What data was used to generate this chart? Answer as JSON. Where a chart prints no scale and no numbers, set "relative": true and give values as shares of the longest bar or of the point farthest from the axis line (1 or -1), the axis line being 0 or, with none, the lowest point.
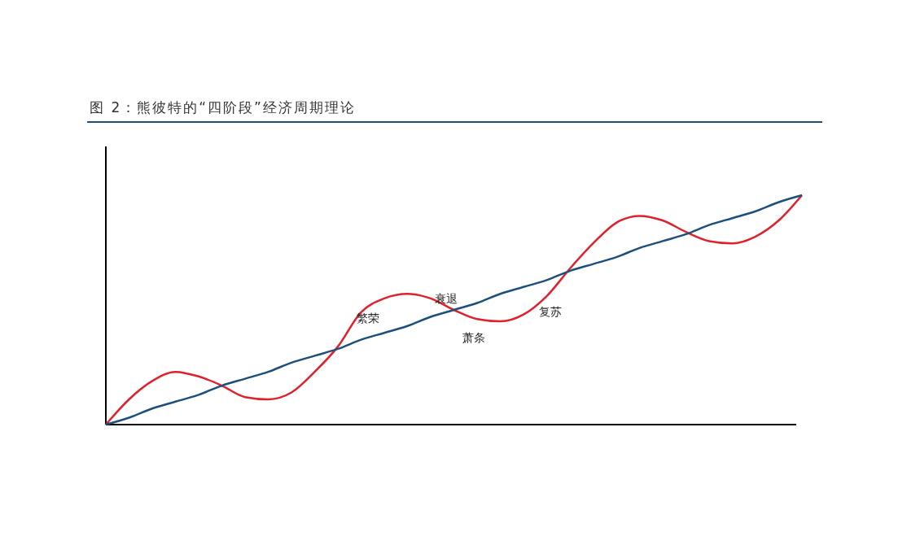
{
  "chart_data": {
    "type": "line",
    "title": "图 2：熊彼特的“四阶段”经济周期理论",
    "relative": true,
    "marker": "none",
    "line_style": "solid",
    "categories": [
      null,
      null,
      null,
      null,
      null,
      null,
      null,
      null,
      null,
      null,
      null,
      null,
      null,
      null,
      null,
      null,
      null,
      null,
      null,
      null,
      null,
      null,
      null,
      null,
      null,
      null,
      null,
      null,
      null,
      null,
      null
    ],
    "series": [
      {
        "color": "#e0202a",
        "values": [
          0,
          0.11,
          0.19,
          0.23,
          0.21,
          0.17,
          0.12,
          0.11,
          0.14,
          0.23,
          0.34,
          0.49,
          0.55,
          0.57,
          0.55,
          0.5,
          0.46,
          0.45,
          0.48,
          0.56,
          0.68,
          0.79,
          0.88,
          0.91,
          0.89,
          0.84,
          0.8,
          0.79,
          0.82,
          0.89,
          1
        ]
      },
      {
        "color": "#1c4f7c",
        "values": [
          0,
          0.03,
          0.07,
          0.1,
          0.13,
          0.17,
          0.2,
          0.23,
          0.27,
          0.3,
          0.33,
          0.37,
          0.4,
          0.43,
          0.47,
          0.5,
          0.53,
          0.57,
          0.6,
          0.63,
          0.67,
          0.7,
          0.73,
          0.77,
          0.8,
          0.83,
          0.87,
          0.9,
          0.93,
          0.97,
          1
        ]
      }
    ],
    "annotations": [
      "繁荣",
      "衰退",
      "萧条",
      "复苏"
    ]
  }
}
